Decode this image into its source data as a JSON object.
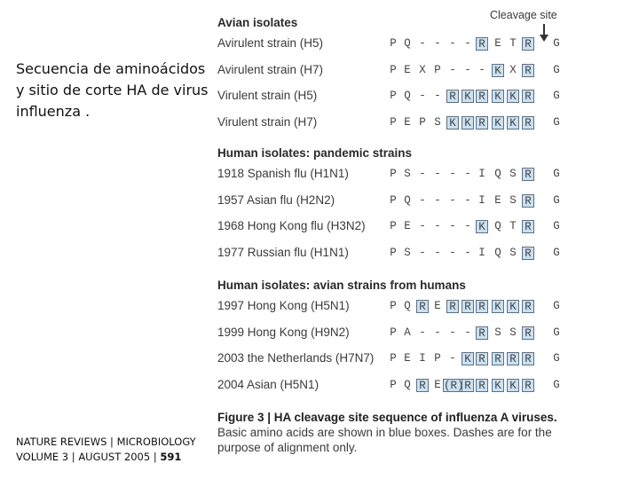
{
  "slide": {
    "title": "Secuencia de aminoácidos y sitio de corte HA de virus influenza .",
    "citation_line1": "NATURE REVIEWS | MICROBIOLOGY",
    "citation_line2_prefix": "VOLUME 3 | AUGUST 2005 | ",
    "citation_page": "591"
  },
  "figure": {
    "cleavage_label": "Cleavage site",
    "sections": [
      {
        "heading": "Avian isolates",
        "rows": [
          {
            "label": "Avirulent strain (H5)",
            "residues": [
              "P",
              "Q",
              "-",
              "-",
              "-",
              "-",
              "R",
              "E",
              "T",
              "R",
              "G"
            ],
            "basic": [
              6,
              9
            ]
          },
          {
            "label": "Avirulent strain (H7)",
            "residues": [
              "P",
              "E",
              "X",
              "P",
              "-",
              "-",
              "-",
              "K",
              "X",
              "R",
              "G"
            ],
            "basic": [
              7,
              9
            ]
          },
          {
            "label": "Virulent strain (H5)",
            "residues": [
              "P",
              "Q",
              "-",
              "-",
              "R",
              "K",
              "R",
              "K",
              "K",
              "R",
              "G"
            ],
            "basic": [
              4,
              5,
              6,
              7,
              8,
              9
            ]
          },
          {
            "label": "Virulent strain (H7)",
            "residues": [
              "P",
              "E",
              "P",
              "S",
              "K",
              "K",
              "R",
              "K",
              "K",
              "R",
              "G"
            ],
            "basic": [
              4,
              5,
              6,
              7,
              8,
              9
            ]
          }
        ]
      },
      {
        "heading": "Human isolates: pandemic strains",
        "rows": [
          {
            "label": "1918 Spanish flu (H1N1)",
            "residues": [
              "P",
              "S",
              "-",
              "-",
              "-",
              "-",
              "I",
              "Q",
              "S",
              "R",
              "G"
            ],
            "basic": [
              9
            ]
          },
          {
            "label": "1957 Asian flu (H2N2)",
            "residues": [
              "P",
              "Q",
              "-",
              "-",
              "-",
              "-",
              "I",
              "E",
              "S",
              "R",
              "G"
            ],
            "basic": [
              9
            ]
          },
          {
            "label": "1968 Hong Kong flu (H3N2)",
            "residues": [
              "P",
              "E",
              "-",
              "-",
              "-",
              "-",
              "K",
              "Q",
              "T",
              "R",
              "G"
            ],
            "basic": [
              6,
              9
            ]
          },
          {
            "label": "1977 Russian flu (H1N1)",
            "residues": [
              "P",
              "S",
              "-",
              "-",
              "-",
              "-",
              "I",
              "Q",
              "S",
              "R",
              "G"
            ],
            "basic": [
              9
            ]
          }
        ]
      },
      {
        "heading": "Human isolates: avian strains from humans",
        "rows": [
          {
            "label": "1997 Hong Kong (H5N1)",
            "residues": [
              "P",
              "Q",
              "R",
              "E",
              "R",
              "R",
              "R",
              "K",
              "K",
              "R",
              "G"
            ],
            "basic": [
              2,
              4,
              5,
              6,
              7,
              8,
              9
            ]
          },
          {
            "label": "1999 Hong Kong (H9N2)",
            "residues": [
              "P",
              "A",
              "-",
              "-",
              "-",
              "-",
              "R",
              "S",
              "S",
              "R",
              "G"
            ],
            "basic": [
              6,
              9
            ]
          },
          {
            "label": "2003 the Netherlands (H7N7)",
            "residues": [
              "P",
              "E",
              "I",
              "P",
              "-",
              "K",
              "R",
              "R",
              "R",
              "R",
              "G"
            ],
            "basic": [
              5,
              6,
              7,
              8,
              9
            ]
          },
          {
            "label": "2004 Asian (H5N1)",
            "residues": [
              "P",
              "Q",
              "R",
              "E",
              "(R)",
              "R",
              "R",
              "K",
              "K",
              "R",
              "G"
            ],
            "basic": [
              2,
              4,
              5,
              6,
              7,
              8,
              9
            ]
          }
        ]
      }
    ],
    "caption_bold": "Figure 3 | HA cleavage site sequence of influenza A viruses.",
    "caption_rest": " Basic amino acids are shown in blue boxes. Dashes are for the purpose of alignment only."
  }
}
